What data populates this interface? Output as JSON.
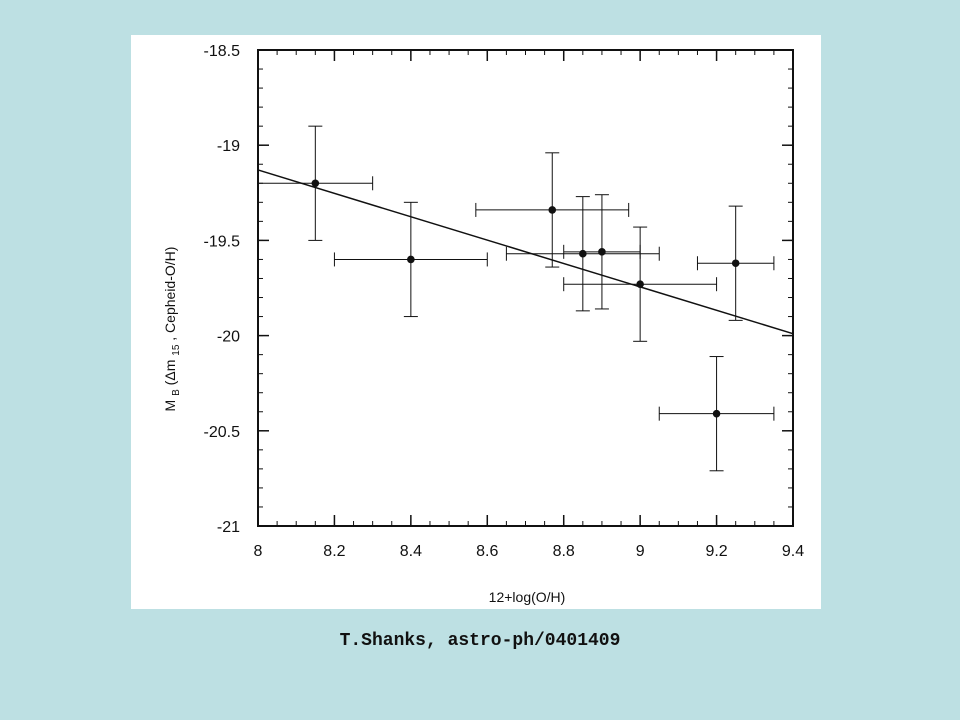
{
  "slide": {
    "background_color": "#bde0e3",
    "credit": "T.Shanks, astro-ph/0401409"
  },
  "chart_data": {
    "type": "scatter",
    "title": "",
    "xlabel": "12+log(O/H)",
    "ylabel_main": "M",
    "ylabel_sub1": "B",
    "ylabel_mid": "(Δm",
    "ylabel_sub2": "15",
    "ylabel_tail": ", Cepheid-O/H)",
    "xlim": [
      8,
      9.4
    ],
    "ylim": [
      -21,
      -18.5
    ],
    "y_inverted": true,
    "x_ticks": [
      8,
      8.2,
      8.4,
      8.6,
      8.8,
      9,
      9.2,
      9.4
    ],
    "x_tick_labels": [
      "8",
      "8.2",
      "8.4",
      "8.6",
      "8.8",
      "9",
      "9.2",
      "9.4"
    ],
    "y_ticks": [
      -18.5,
      -19,
      -19.5,
      -20,
      -20.5,
      -21
    ],
    "y_tick_labels": [
      "-18.5",
      "-19",
      "-19.5",
      "-20",
      "-20.5",
      "-21"
    ],
    "x_minor_step": 0.05,
    "y_minor_step": 0.1,
    "grid": false,
    "legend": "none",
    "points": [
      {
        "x": 8.15,
        "y": -19.2,
        "xlo": 8.0,
        "xhi": 8.3,
        "ylo": -19.5,
        "yhi": -18.9
      },
      {
        "x": 8.4,
        "y": -19.6,
        "xlo": 8.2,
        "xhi": 8.6,
        "ylo": -19.9,
        "yhi": -19.3
      },
      {
        "x": 8.77,
        "y": -19.34,
        "xlo": 8.57,
        "xhi": 8.97,
        "ylo": -19.64,
        "yhi": -19.04
      },
      {
        "x": 8.85,
        "y": -19.57,
        "xlo": 8.65,
        "xhi": 9.05,
        "ylo": -19.87,
        "yhi": -19.27
      },
      {
        "x": 8.9,
        "y": -19.56,
        "xlo": 8.8,
        "xhi": 9.0,
        "ylo": -19.86,
        "yhi": -19.26
      },
      {
        "x": 9.0,
        "y": -19.73,
        "xlo": 8.8,
        "xhi": 9.2,
        "ylo": -20.03,
        "yhi": -19.43
      },
      {
        "x": 9.25,
        "y": -19.62,
        "xlo": 9.15,
        "xhi": 9.35,
        "ylo": -19.92,
        "yhi": -19.32
      },
      {
        "x": 9.2,
        "y": -20.41,
        "xlo": 9.05,
        "xhi": 9.35,
        "ylo": -20.71,
        "yhi": -20.11
      }
    ],
    "fit_line": {
      "x": [
        8.0,
        9.4
      ],
      "y": [
        -19.13,
        -19.99
      ]
    },
    "colors": {
      "ink": "#111111",
      "panel": "#ffffff"
    }
  }
}
